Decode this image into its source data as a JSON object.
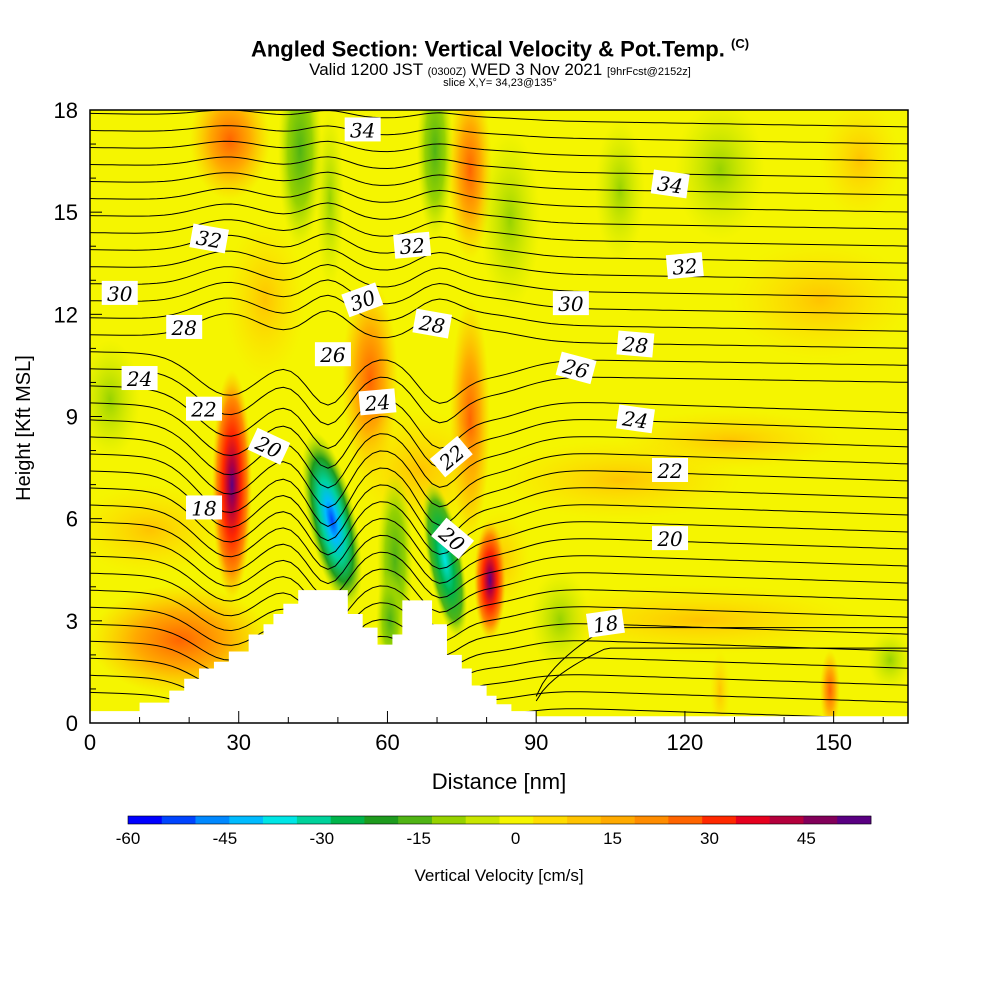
{
  "title": {
    "main": "Angled Section: Vertical Velocity & Pot.Temp.",
    "main_unit": "(C)",
    "valid_prefix": "Valid 1200 JST",
    "valid_utc": "(0300Z)",
    "valid_date": "WED 3 Nov 2021",
    "forecast": "[9hrFcst@2152z]",
    "slice": "slice X,Y= 34,23@135°"
  },
  "chart_data": {
    "type": "heatmap",
    "xlabel": "Distance [nm]",
    "ylabel": "Height [Kft MSL]",
    "xlim": [
      0,
      165
    ],
    "ylim": [
      0,
      18
    ],
    "x_ticks": [
      "0",
      "30",
      "60",
      "90",
      "120",
      "150"
    ],
    "y_ticks": [
      "0",
      "3",
      "6",
      "9",
      "12",
      "15",
      "18"
    ],
    "colorbar": {
      "label": "Vertical Velocity [cm/s]",
      "range": [
        -60,
        55
      ],
      "tick_labels": [
        "-60",
        "-45",
        "-30",
        "-15",
        "0",
        "15",
        "30",
        "45"
      ],
      "colors": [
        "#0000ff",
        "#0044ff",
        "#0088ff",
        "#00bbff",
        "#00e6e6",
        "#00d29b",
        "#00b44b",
        "#1e9b1e",
        "#50b414",
        "#96d200",
        "#c8e600",
        "#f5f500",
        "#ffdc00",
        "#ffc300",
        "#ffaa00",
        "#ff8c00",
        "#ff6400",
        "#ff2800",
        "#e6001e",
        "#b4003c",
        "#82005a",
        "#5a0082"
      ]
    },
    "field_background": "#f5f500",
    "contour_labels": [
      {
        "text": "34",
        "x": 55,
        "y": 17.4,
        "rot": 0
      },
      {
        "text": "34",
        "x": 117,
        "y": 15.8,
        "rot": 8
      },
      {
        "text": "32",
        "x": 24,
        "y": 14.2,
        "rot": 10
      },
      {
        "text": "32",
        "x": 65,
        "y": 14.0,
        "rot": -5
      },
      {
        "text": "32",
        "x": 120,
        "y": 13.4,
        "rot": -5
      },
      {
        "text": "30",
        "x": 6,
        "y": 12.6,
        "rot": 0
      },
      {
        "text": "30",
        "x": 55,
        "y": 12.4,
        "rot": -20
      },
      {
        "text": "30",
        "x": 97,
        "y": 12.3,
        "rot": 0
      },
      {
        "text": "28",
        "x": 19,
        "y": 11.6,
        "rot": 0
      },
      {
        "text": "28",
        "x": 69,
        "y": 11.7,
        "rot": 10
      },
      {
        "text": "28",
        "x": 110,
        "y": 11.1,
        "rot": 5
      },
      {
        "text": "26",
        "x": 49,
        "y": 10.8,
        "rot": 0
      },
      {
        "text": "26",
        "x": 98,
        "y": 10.4,
        "rot": 15
      },
      {
        "text": "24",
        "x": 10,
        "y": 10.1,
        "rot": 0
      },
      {
        "text": "24",
        "x": 58,
        "y": 9.4,
        "rot": -5
      },
      {
        "text": "24",
        "x": 110,
        "y": 8.9,
        "rot": 8
      },
      {
        "text": "22",
        "x": 23,
        "y": 9.2,
        "rot": 0
      },
      {
        "text": "22",
        "x": 73,
        "y": 7.8,
        "rot": -40
      },
      {
        "text": "22",
        "x": 117,
        "y": 7.4,
        "rot": 0
      },
      {
        "text": "20",
        "x": 36,
        "y": 8.1,
        "rot": 25
      },
      {
        "text": "20",
        "x": 73,
        "y": 5.4,
        "rot": 40
      },
      {
        "text": "20",
        "x": 117,
        "y": 5.4,
        "rot": 0
      },
      {
        "text": "18",
        "x": 23,
        "y": 6.3,
        "rot": 0
      },
      {
        "text": "18",
        "x": 104,
        "y": 2.9,
        "rot": -8
      }
    ]
  }
}
